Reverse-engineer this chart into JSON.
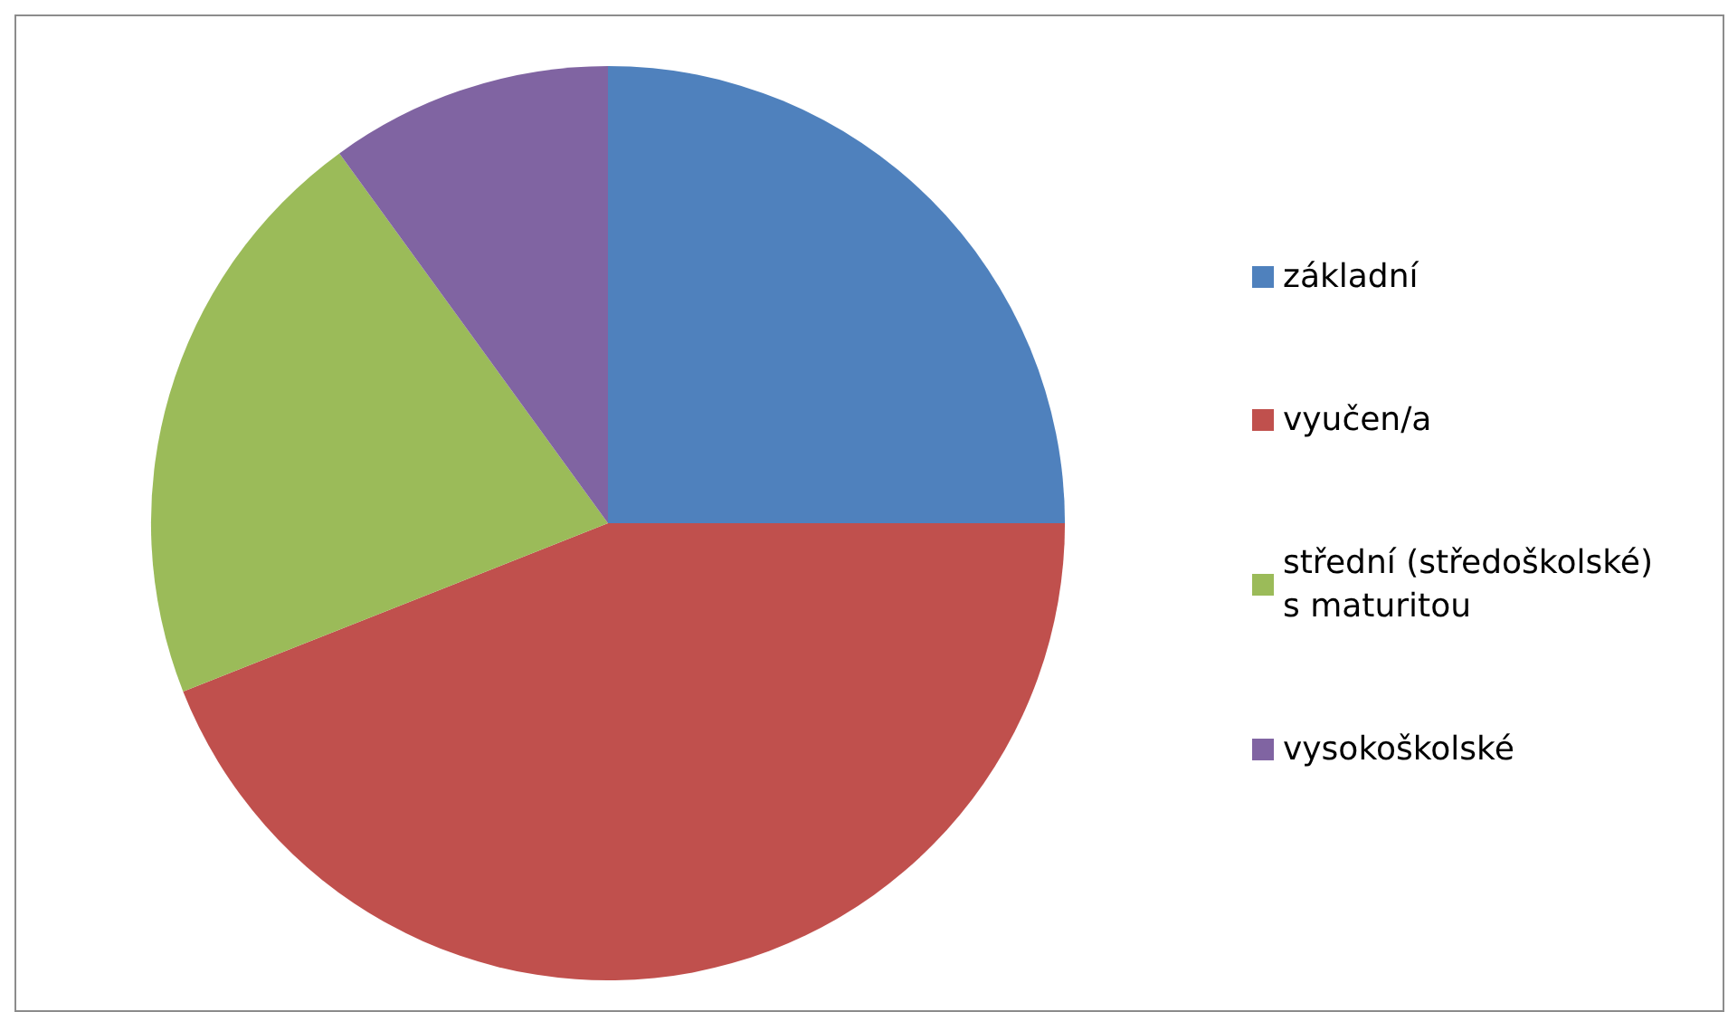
{
  "chart_data": {
    "type": "pie",
    "categories": [
      "základní",
      "vyučen/a",
      "střední (středoškolské) s maturitou",
      "vysokoškolské"
    ],
    "values": [
      25,
      44,
      21,
      10
    ],
    "colors": [
      "#4f81bd",
      "#c0504d",
      "#9bbb59",
      "#8064a2"
    ],
    "legend": "right"
  }
}
